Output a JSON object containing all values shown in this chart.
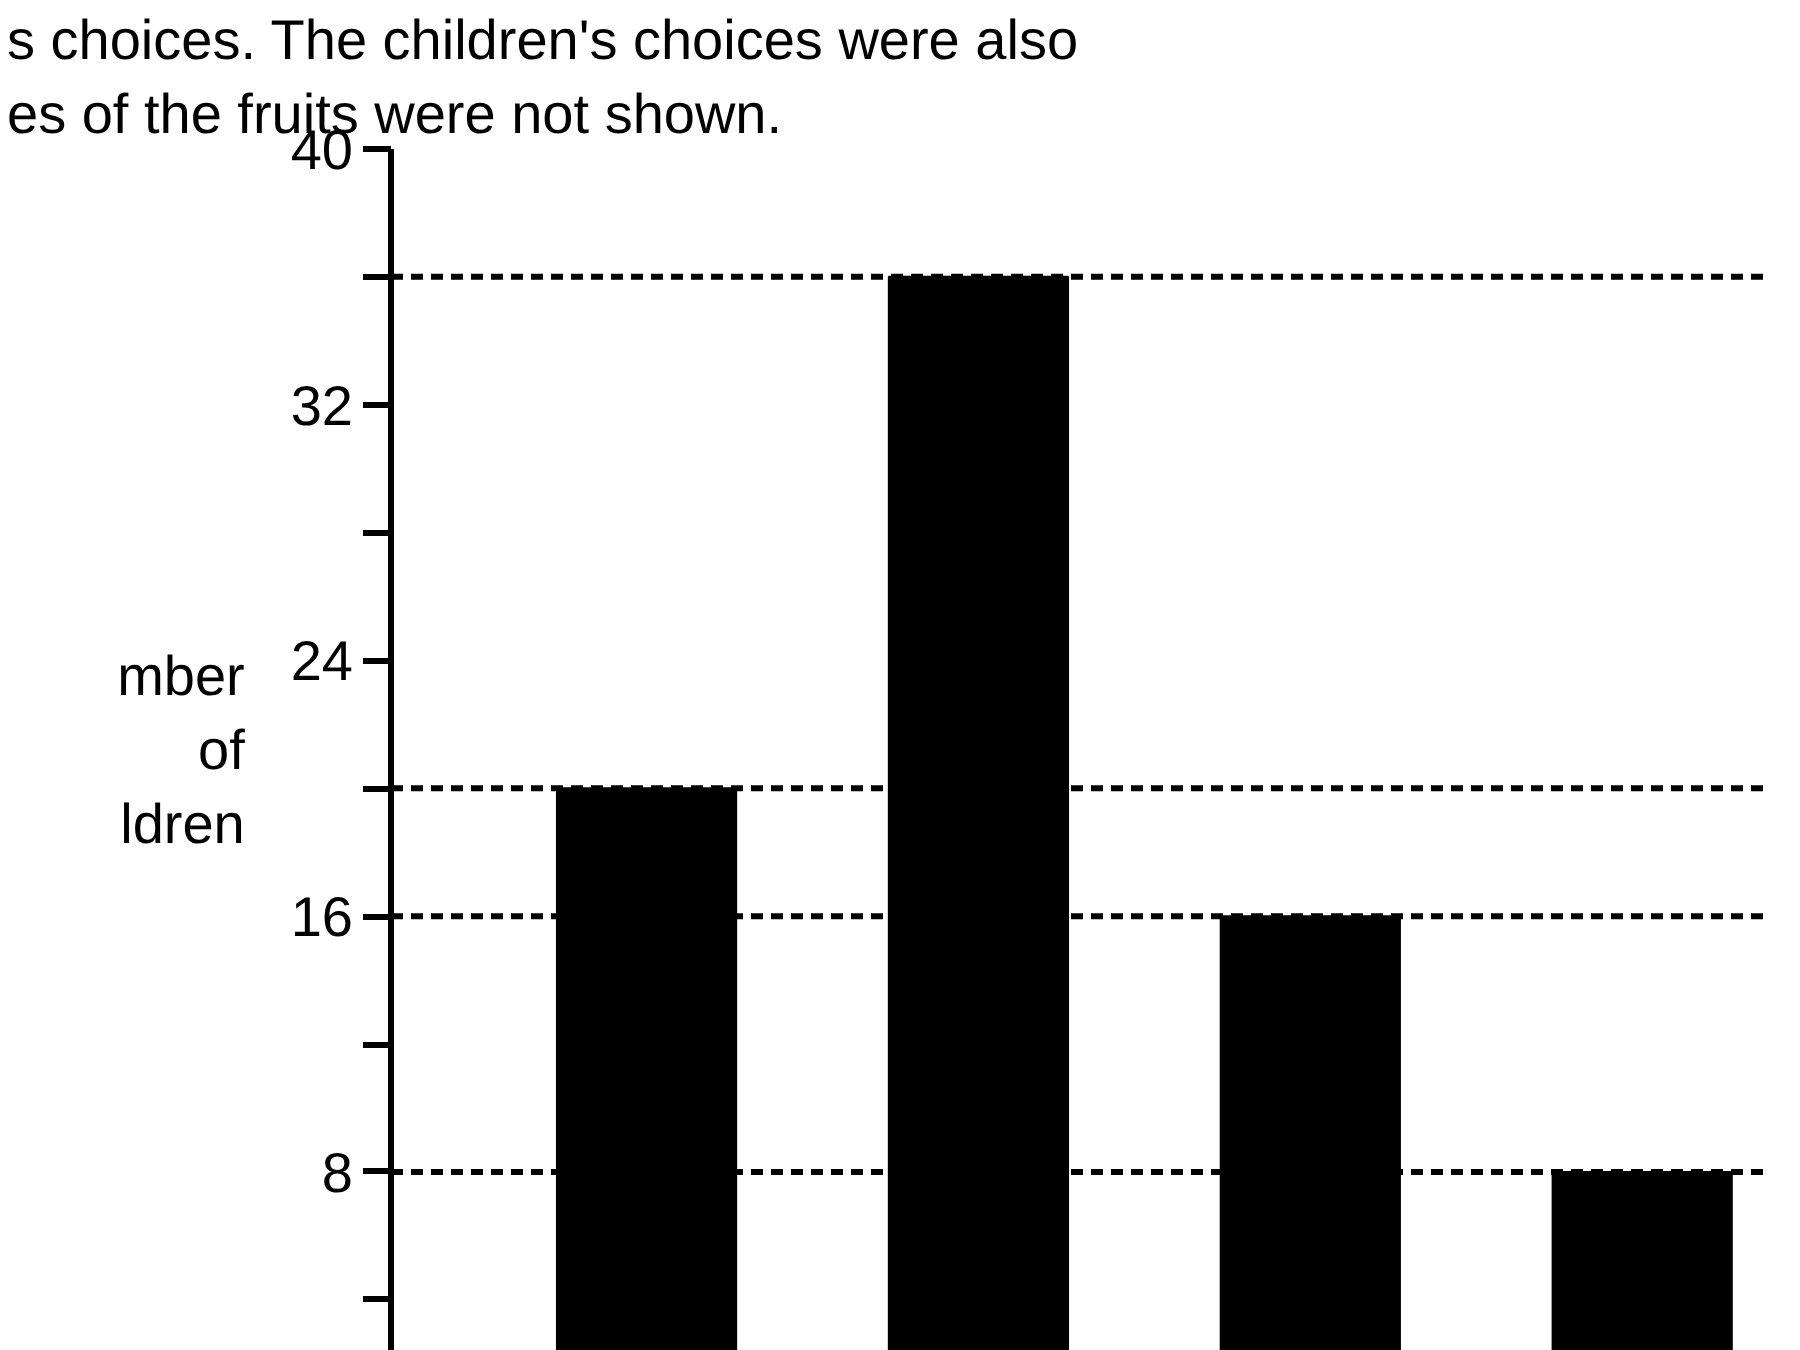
{
  "chart_data": {
    "type": "bar",
    "annotations": [
      "s choices. The children's choices were also",
      "es of the fruits were not shown."
    ],
    "ylabel": "mber of ldren",
    "categories": [
      null,
      null,
      null,
      null
    ],
    "values": [
      20,
      36,
      16,
      8
    ],
    "color": "#000000",
    "ylim": [
      2.4,
      40
    ],
    "yticks": [
      {
        "value": 4,
        "label": null
      },
      8,
      {
        "value": 12,
        "label": null
      },
      16,
      {
        "value": 20,
        "label": null
      },
      24,
      {
        "value": 28,
        "label": null
      },
      32,
      {
        "value": 36,
        "label": null
      },
      40
    ],
    "ref_lines": [
      {
        "axis": "y",
        "value": 36,
        "color": "#000000",
        "line_style": "dashed"
      },
      {
        "axis": "y",
        "value": 20,
        "color": "#000000",
        "line_style": "dashed"
      },
      {
        "axis": "y",
        "value": 16,
        "color": "#000000",
        "line_style": "dashed"
      },
      {
        "axis": "y",
        "value": 8,
        "color": "#000000",
        "line_style": "dashed"
      }
    ],
    "grid": false,
    "tick_labels": "y"
  }
}
